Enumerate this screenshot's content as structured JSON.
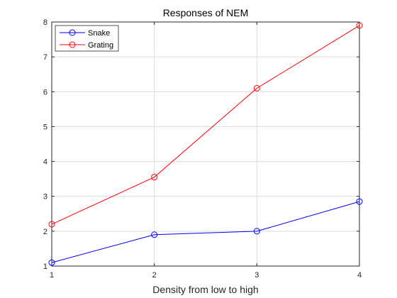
{
  "chart_data": {
    "type": "line",
    "title": "Responses of NEM",
    "xlabel": "Density from low to high",
    "ylabel": "",
    "xlim": [
      1,
      4
    ],
    "ylim": [
      1,
      8
    ],
    "xticks": [
      1,
      2,
      3,
      4
    ],
    "yticks": [
      1,
      2,
      3,
      4,
      5,
      6,
      7,
      8
    ],
    "grid": true,
    "legend_position": "top-left",
    "marker": "circle",
    "x": [
      1,
      2,
      3,
      4
    ],
    "series": [
      {
        "name": "Snake",
        "color": "#0000ff",
        "values": [
          1.1,
          1.9,
          2.0,
          2.85
        ]
      },
      {
        "name": "Grating",
        "color": "#ff0000",
        "values": [
          2.2,
          3.55,
          6.1,
          7.9
        ]
      }
    ]
  }
}
